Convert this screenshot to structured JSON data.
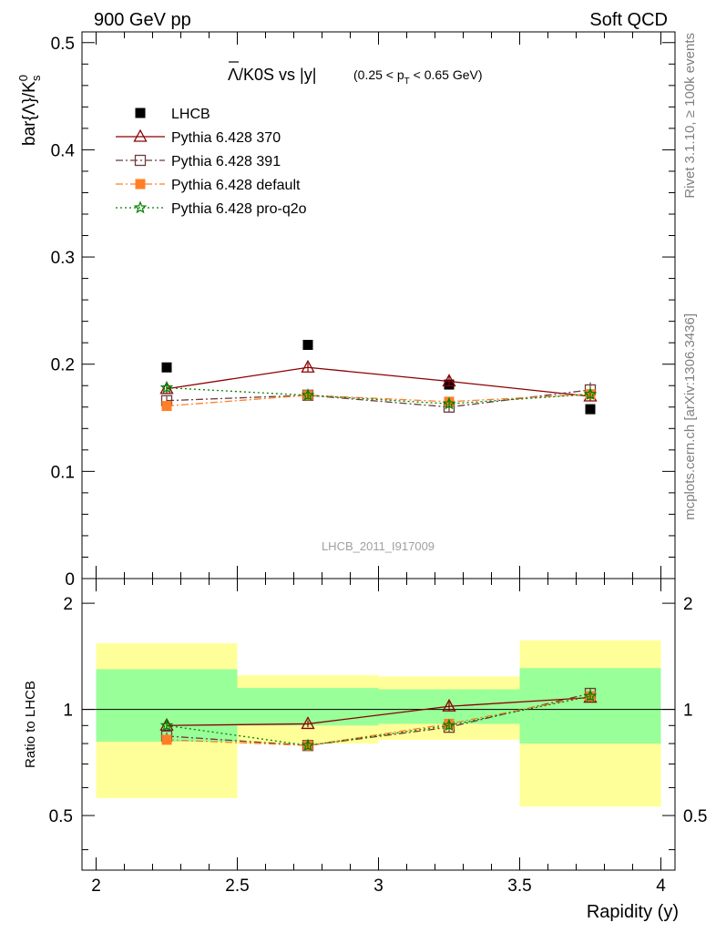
{
  "header": {
    "left_label": "900 GeV pp",
    "right_label": "Soft QCD"
  },
  "side_labels": {
    "rivet": "Rivet 3.1.10, ≥ 100k events",
    "mcplots": "mcplots.cern.ch [arXiv:1306.3436]"
  },
  "watermark": "LHCB_2011_I917009",
  "title": {
    "bar_lambda": "Λ",
    "main": "/K0S vs |y|",
    "cut_prefix": "(0.25 < p",
    "cut_sub": "T",
    "cut_suffix": " < 0.65 GeV)"
  },
  "colors": {
    "band_yellow": "#ffff99",
    "band_green": "#99ff99"
  },
  "chart_data": [
    {
      "type": "line",
      "panel": "main",
      "xlabel": "Rapidity (y)",
      "ylabel": "bar{Λ}/K⁰s",
      "ylabel_parts": {
        "main": "bar{Λ}/K",
        "sup": "0",
        "sub": "s"
      },
      "xlim": [
        1.95,
        4.05
      ],
      "ylim": [
        0,
        0.51
      ],
      "yticks": [
        0,
        0.1,
        0.2,
        0.3,
        0.4,
        0.5
      ],
      "ytick_labels": [
        "0",
        "0.1",
        "0.2",
        "0.3",
        "0.4",
        "0.5"
      ],
      "legend_position": "top-left",
      "x": [
        2.25,
        2.75,
        3.25,
        3.75
      ],
      "series": [
        {
          "name": "LHCB",
          "style": "data",
          "color": "#000000",
          "marker": "filled-square",
          "values": [
            0.197,
            0.218,
            0.181,
            0.158
          ]
        },
        {
          "name": "Pythia 6.428 370",
          "style": "solid",
          "color": "#8b0000",
          "marker": "open-triangle",
          "values": [
            0.177,
            0.197,
            0.184,
            0.17
          ],
          "errors": [
            0.004,
            0.004,
            0.005,
            0.004
          ]
        },
        {
          "name": "Pythia 6.428 391",
          "style": "dashdot",
          "color": "#6e3a3a",
          "marker": "open-square",
          "values": [
            0.166,
            0.171,
            0.16,
            0.176
          ],
          "errors": [
            0.004,
            0.004,
            0.005,
            0.007
          ]
        },
        {
          "name": "Pythia 6.428 default",
          "style": "dashdot",
          "color": "#ff7f27",
          "marker": "filled-square",
          "values": [
            0.161,
            0.171,
            0.165,
            0.172
          ],
          "errors": [
            0.004,
            0.004,
            0.004,
            0.005
          ]
        },
        {
          "name": "Pythia 6.428 pro-q2o",
          "style": "dotted",
          "color": "#008000",
          "marker": "open-star",
          "values": [
            0.178,
            0.171,
            0.163,
            0.172
          ],
          "errors": [
            0.004,
            0.004,
            0.004,
            0.005
          ]
        }
      ]
    },
    {
      "type": "line",
      "panel": "ratio",
      "xlabel": "Rapidity (y)",
      "ylabel": "Ratio to LHCB",
      "xlim": [
        1.95,
        4.05
      ],
      "ylim": [
        0.35,
        2.35
      ],
      "yticks": [
        0.5,
        1,
        2
      ],
      "ytick_labels": [
        "0.5",
        "1",
        "2"
      ],
      "xticks": [
        2,
        2.5,
        3,
        3.5,
        4
      ],
      "xtick_labels": [
        "2",
        "2.5",
        "3",
        "3.5",
        "4"
      ],
      "reference_line": 1,
      "bins": [
        {
          "lo": 2.0,
          "hi": 2.5,
          "yellow": [
            0.56,
            1.54
          ],
          "green": [
            0.81,
            1.3
          ]
        },
        {
          "lo": 2.5,
          "hi": 3.0,
          "yellow": [
            0.8,
            1.25
          ],
          "green": [
            0.9,
            1.15
          ]
        },
        {
          "lo": 3.0,
          "hi": 3.5,
          "yellow": [
            0.82,
            1.24
          ],
          "green": [
            0.91,
            1.14
          ]
        },
        {
          "lo": 3.5,
          "hi": 4.0,
          "yellow": [
            0.53,
            1.57
          ],
          "green": [
            0.8,
            1.31
          ]
        }
      ],
      "x": [
        2.25,
        2.75,
        3.25,
        3.75
      ],
      "series": [
        {
          "name": "Pythia 6.428 370",
          "style": "solid",
          "color": "#8b0000",
          "marker": "open-triangle",
          "values": [
            0.9,
            0.91,
            1.02,
            1.08
          ],
          "errors": [
            0.02,
            0.02,
            0.03,
            0.03
          ]
        },
        {
          "name": "Pythia 6.428 391",
          "style": "dashdot",
          "color": "#6e3a3a",
          "marker": "open-square",
          "values": [
            0.84,
            0.79,
            0.89,
            1.11
          ],
          "errors": [
            0.02,
            0.02,
            0.03,
            0.04
          ]
        },
        {
          "name": "Pythia 6.428 default",
          "style": "dashdot",
          "color": "#ff7f27",
          "marker": "filled-square",
          "values": [
            0.82,
            0.79,
            0.91,
            1.09
          ],
          "errors": [
            0.02,
            0.02,
            0.02,
            0.03
          ]
        },
        {
          "name": "Pythia 6.428 pro-q2o",
          "style": "dotted",
          "color": "#008000",
          "marker": "open-star",
          "values": [
            0.9,
            0.79,
            0.9,
            1.09
          ],
          "errors": [
            0.02,
            0.02,
            0.02,
            0.03
          ]
        }
      ]
    }
  ]
}
